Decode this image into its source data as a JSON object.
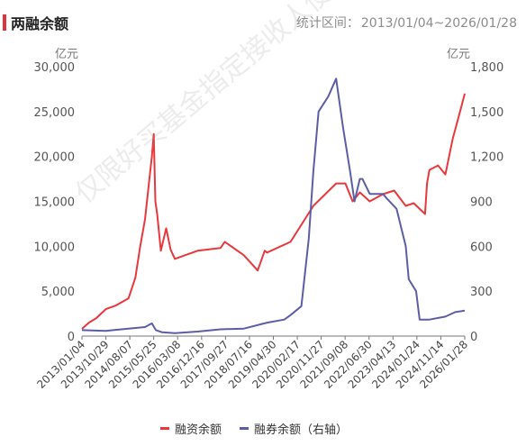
{
  "header": {
    "title": "两融余额",
    "range_label": "统计区间：",
    "range_value": "2013/01/04~2026/01/28"
  },
  "colors": {
    "title_bar": "#d9363e",
    "margin_balance": "#e8383d",
    "short_balance": "#5b5ea6"
  },
  "watermark": "仅限好买基金指定接收人使用",
  "legend": {
    "items": [
      {
        "label": "融资余额",
        "color": "#e8383d"
      },
      {
        "label": "融券余额（右轴）",
        "color": "#5b5ea6"
      }
    ]
  },
  "chart_data": {
    "type": "line",
    "left_axis": {
      "unit": "亿元",
      "ticks": [
        "30,000",
        "25,000",
        "20,000",
        "15,000",
        "10,000",
        "5,000",
        "0"
      ],
      "ylim": [
        0,
        30000
      ]
    },
    "right_axis": {
      "unit": "亿元",
      "ticks": [
        "1,800",
        "1,500",
        "1,200",
        "900",
        "600",
        "300",
        "0"
      ],
      "ylim": [
        0,
        1800
      ]
    },
    "x_tick_labels": [
      "2013/01/04",
      "2013/10/29",
      "2014/08/07",
      "2015/05/25",
      "2016/03/08",
      "2016/12/16",
      "2017/09/27",
      "2018/07/16",
      "2019/04/30",
      "2020/02/17",
      "2020/11/27",
      "2021/09/08",
      "2022/06/30",
      "2023/04/13",
      "2024/01/24",
      "2024/11/14",
      "2026/01/28"
    ],
    "xlim": [
      "2013/01/04",
      "2026/01/28"
    ],
    "series": [
      {
        "name": "融资余额",
        "axis": "left",
        "points": [
          [
            "2013/01/04",
            800
          ],
          [
            "2013/04/01",
            1500
          ],
          [
            "2013/07/01",
            2000
          ],
          [
            "2013/10/29",
            3000
          ],
          [
            "2014/03/01",
            3400
          ],
          [
            "2014/08/07",
            4200
          ],
          [
            "2014/11/01",
            6500
          ],
          [
            "2014/12/31",
            10000
          ],
          [
            "2015/03/01",
            13000
          ],
          [
            "2015/05/25",
            20000
          ],
          [
            "2015/06/18",
            22500
          ],
          [
            "2015/07/08",
            15000
          ],
          [
            "2015/08/01",
            13500
          ],
          [
            "2015/09/15",
            9500
          ],
          [
            "2015/11/20",
            12000
          ],
          [
            "2016/01/15",
            9600
          ],
          [
            "2016/03/08",
            8600
          ],
          [
            "2016/12/16",
            9500
          ],
          [
            "2017/09/27",
            9800
          ],
          [
            "2017/11/20",
            10500
          ],
          [
            "2018/07/16",
            9000
          ],
          [
            "2019/01/04",
            7300
          ],
          [
            "2019/04/01",
            9500
          ],
          [
            "2019/04/30",
            9300
          ],
          [
            "2020/02/17",
            10500
          ],
          [
            "2020/11/27",
            14500
          ],
          [
            "2021/09/08",
            17000
          ],
          [
            "2022/01/01",
            17000
          ],
          [
            "2022/04/01",
            15000
          ],
          [
            "2022/06/30",
            16000
          ],
          [
            "2022/10/31",
            15000
          ],
          [
            "2023/04/13",
            15800
          ],
          [
            "2023/09/01",
            16200
          ],
          [
            "2024/01/24",
            14500
          ],
          [
            "2024/05/01",
            14800
          ],
          [
            "2024/09/20",
            13600
          ],
          [
            "2024/10/15",
            17000
          ],
          [
            "2024/11/14",
            18500
          ],
          [
            "2025/03/01",
            19000
          ],
          [
            "2025/06/01",
            18000
          ],
          [
            "2025/09/01",
            22000
          ],
          [
            "2025/12/01",
            25000
          ],
          [
            "2026/01/28",
            27000
          ]
        ]
      },
      {
        "name": "融券余额（右轴）",
        "axis": "right",
        "points": [
          [
            "2013/01/04",
            40
          ],
          [
            "2013/10/29",
            35
          ],
          [
            "2014/08/07",
            50
          ],
          [
            "2015/03/01",
            60
          ],
          [
            "2015/05/25",
            85
          ],
          [
            "2015/07/15",
            40
          ],
          [
            "2015/10/01",
            25
          ],
          [
            "2016/03/08",
            20
          ],
          [
            "2016/12/16",
            30
          ],
          [
            "2017/09/27",
            45
          ],
          [
            "2018/07/16",
            50
          ],
          [
            "2019/04/30",
            90
          ],
          [
            "2019/12/01",
            110
          ],
          [
            "2020/02/17",
            140
          ],
          [
            "2020/07/01",
            200
          ],
          [
            "2020/10/01",
            650
          ],
          [
            "2020/11/27",
            1100
          ],
          [
            "2021/02/01",
            1500
          ],
          [
            "2021/06/01",
            1600
          ],
          [
            "2021/09/08",
            1720
          ],
          [
            "2021/12/01",
            1400
          ],
          [
            "2022/03/01",
            1100
          ],
          [
            "2022/04/25",
            900
          ],
          [
            "2022/06/30",
            1050
          ],
          [
            "2022/08/01",
            1050
          ],
          [
            "2022/10/31",
            950
          ],
          [
            "2023/04/13",
            950
          ],
          [
            "2023/06/01",
            920
          ],
          [
            "2023/10/01",
            850
          ],
          [
            "2024/01/24",
            600
          ],
          [
            "2024/03/01",
            380
          ],
          [
            "2024/06/01",
            300
          ],
          [
            "2024/07/15",
            110
          ],
          [
            "2024/11/14",
            110
          ],
          [
            "2025/06/01",
            130
          ],
          [
            "2025/10/01",
            160
          ],
          [
            "2026/01/28",
            170
          ]
        ]
      }
    ],
    "grid": false,
    "legend_position": "bottom"
  }
}
